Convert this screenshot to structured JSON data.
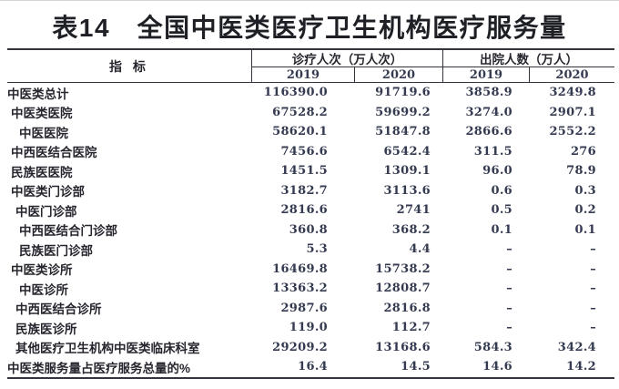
{
  "title": "表14　全国中医类医疗卫生机构医疗服务量",
  "table": {
    "indicator_header": "指 标",
    "col_groups": [
      {
        "label": "诊疗人次（万人次）",
        "years": [
          "2019",
          "2020"
        ]
      },
      {
        "label": "出院人数（万人）",
        "years": [
          "2019",
          "2020"
        ]
      }
    ],
    "rows": [
      {
        "indicator": "中医类总计",
        "indent": 0,
        "values": [
          "116390.0",
          "91719.6",
          "3858.9",
          "3249.8"
        ]
      },
      {
        "indicator": "中医类医院",
        "indent": 1,
        "values": [
          "67528.2",
          "59699.2",
          "3274.0",
          "2907.1"
        ]
      },
      {
        "indicator": "中医医院",
        "indent": 3,
        "values": [
          "58620.1",
          "51847.8",
          "2866.6",
          "2552.2"
        ]
      },
      {
        "indicator": "中西医结合医院",
        "indent": 1,
        "values": [
          "7456.6",
          "6542.4",
          "311.5",
          "276"
        ]
      },
      {
        "indicator": "民族医医院",
        "indent": 1,
        "values": [
          "1451.5",
          "1309.1",
          "96.0",
          "78.9"
        ]
      },
      {
        "indicator": "中医类门诊部",
        "indent": 1,
        "values": [
          "3182.7",
          "3113.6",
          "0.6",
          "0.3"
        ]
      },
      {
        "indicator": "中医门诊部",
        "indent": 2,
        "values": [
          "2816.6",
          "2741",
          "0.5",
          "0.2"
        ]
      },
      {
        "indicator": "中西医结合门诊部",
        "indent": 3,
        "values": [
          "360.8",
          "368.2",
          "0.1",
          "0.1"
        ]
      },
      {
        "indicator": "民族医门诊部",
        "indent": 3,
        "values": [
          "5.3",
          "4.4",
          "–",
          "–"
        ]
      },
      {
        "indicator": "中医类诊所",
        "indent": 1,
        "values": [
          "16469.8",
          "15738.2",
          "–",
          "–"
        ]
      },
      {
        "indicator": "中医诊所",
        "indent": 3,
        "values": [
          "13363.2",
          "12808.7",
          "–",
          "–"
        ]
      },
      {
        "indicator": "中西医结合诊所",
        "indent": 2,
        "values": [
          "2987.6",
          "2816.8",
          "–",
          "–"
        ]
      },
      {
        "indicator": "民族医诊所",
        "indent": 2,
        "values": [
          "119.0",
          "112.7",
          "–",
          "–"
        ]
      },
      {
        "indicator": "其他医疗卫生机构中医类临床科室",
        "indent": 2,
        "values": [
          "29209.2",
          "13168.6",
          "584.3",
          "342.4"
        ]
      },
      {
        "indicator": "中医类服务量占医疗服务总量的%",
        "indent": 0,
        "values": [
          "16.4",
          "14.5",
          "14.6",
          "14.2"
        ]
      }
    ]
  }
}
